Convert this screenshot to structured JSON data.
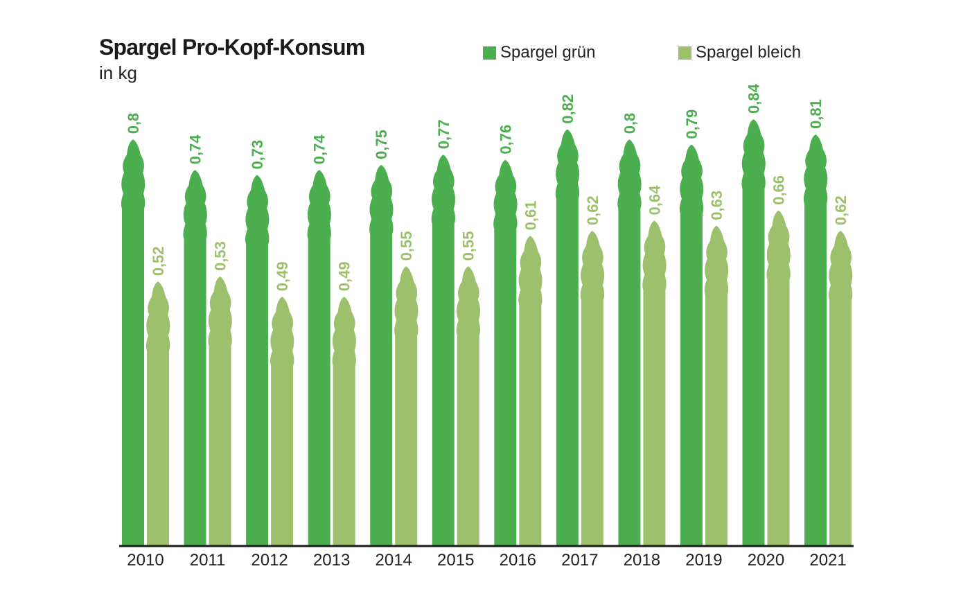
{
  "chart_data": {
    "type": "bar",
    "title": "Spargel Pro-Kopf-Konsum",
    "subtitle": "in kg",
    "categories": [
      "2010",
      "2011",
      "2012",
      "2013",
      "2014",
      "2015",
      "2016",
      "2017",
      "2018",
      "2019",
      "2020",
      "2021"
    ],
    "series": [
      {
        "name": "Spargel grün",
        "color": "#4caf4f",
        "values": [
          0.8,
          0.74,
          0.73,
          0.74,
          0.75,
          0.77,
          0.76,
          0.82,
          0.8,
          0.79,
          0.84,
          0.81
        ],
        "labels": [
          "0,8",
          "0,74",
          "0,73",
          "0,74",
          "0,75",
          "0,77",
          "0,76",
          "0,82",
          "0,8",
          "0,79",
          "0,84",
          "0,81"
        ]
      },
      {
        "name": "Spargel bleich",
        "color": "#9cc06b",
        "values": [
          0.52,
          0.53,
          0.49,
          0.49,
          0.55,
          0.55,
          0.61,
          0.62,
          0.64,
          0.63,
          0.66,
          0.62
        ],
        "labels": [
          "0,52",
          "0,53",
          "0,49",
          "0,49",
          "0,55",
          "0,55",
          "0,61",
          "0,62",
          "0,64",
          "0,63",
          "0,66",
          "0,62"
        ]
      }
    ],
    "ylim": [
      0,
      0.84
    ],
    "grid": false,
    "legend": "top-right"
  }
}
